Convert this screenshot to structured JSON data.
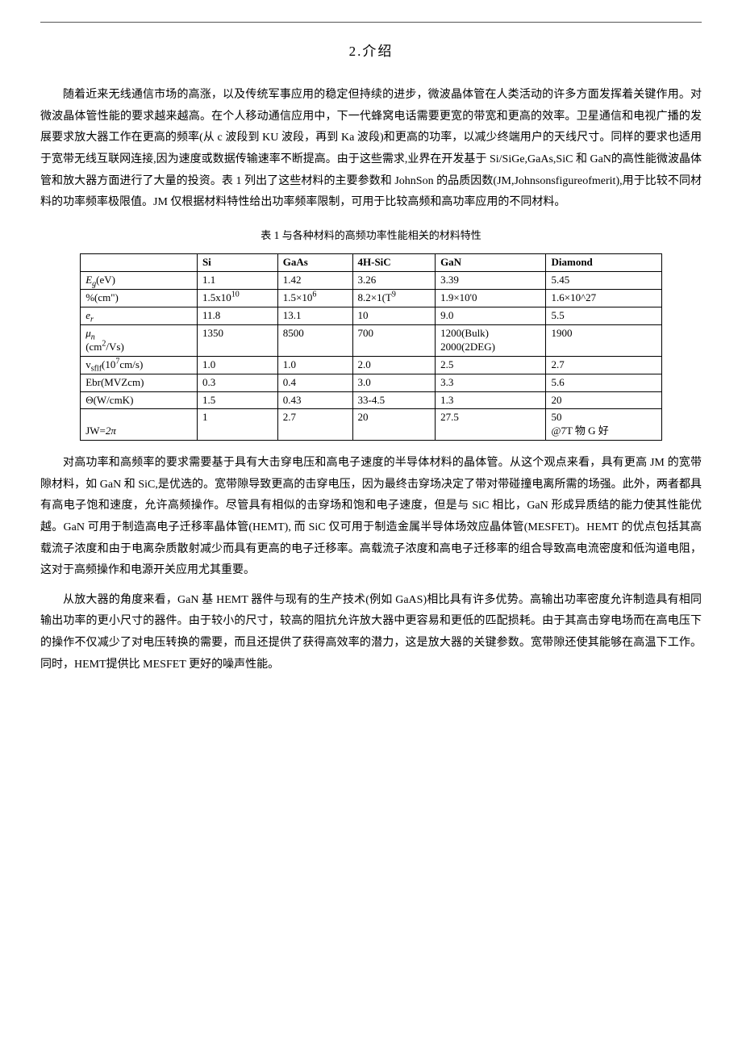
{
  "section_number": "2",
  "section_title": ".介绍",
  "para1": "随着近来无线通信市场的高涨，以及传统军事应用的稳定但持续的进步，微波晶体管在人类活动的许多方面发挥着关键作用。对微波晶体管性能的要求越来越高。在个人移动通信应用中，下一代蜂窝电话需要更宽的带宽和更高的效率。卫星通信和电视广播的发展要求放大器工作在更高的频率(从 c 波段到 KU 波段，再到 Ka 波段)和更高的功率，以减少终端用户的天线尺寸。同样的要求也适用于宽带无线互联网连接,因为速度或数据传输速率不断提高。由于这些需求,业界在开发基于 Si/SiGe,GaAs,SiC 和 GaN的高性能微波晶体管和放大器方面进行了大量的投资。表 1 列出了这些材料的主要参数和 JohnSon 的品质因数(JM,Johnsonsfigureofmerit),用于比较不同材料的功率频率极限值。JM 仅根据材料特性给出功率频率限制，可用于比较高频和高功率应用的不同材料。",
  "table_caption_prefix": "表",
  "table_caption_num": "1",
  "table_caption_text": " 与各种材料的高频功率性能相关的材料特性",
  "table": {
    "columns": [
      "",
      "Si",
      "GaAs",
      "4H-SiC",
      "GaN",
      "Diamond"
    ],
    "rows": [
      {
        "header_html": "<span class='italic'>E<sub>g</sub></span>(eV)",
        "cells": [
          "1.1",
          "1.42",
          "3.26",
          "3.39",
          "5.45"
        ]
      },
      {
        "header_html": "%(cm\")",
        "cells": [
          "1.5x10<sup>10</sup>",
          "1.5×10<sup>6</sup>",
          "8.2×1(T<sup>9</sup>",
          "1.9×10'0",
          "1.6×10^27"
        ]
      },
      {
        "header_html": "<span class='italic'>e<sub>r</sub></span>",
        "cells": [
          "11.8",
          "13.1",
          "10",
          "9.0",
          "5.5"
        ]
      },
      {
        "header_html": "<span class='italic'>μ<sub>n</sub></span><br>(cm<sup>2</sup>/Vs)",
        "cells": [
          "1350",
          "8500",
          "700",
          "1200(Bulk)<br>2000(2DEG)",
          "1900"
        ]
      },
      {
        "header_html": "v<sub>sflf</sub>(10<sup>7</sup>cm/s)",
        "cells": [
          "1.0",
          "1.0",
          "2.0",
          "2.5",
          "2.7"
        ]
      },
      {
        "header_html": "Ebr(MVZcm)",
        "cells": [
          "0.3",
          "0.4",
          "3.0",
          "3.3",
          "5.6"
        ]
      },
      {
        "header_html": "Θ(W/cmK)",
        "cells": [
          "1.5",
          "0.43",
          "33-4.5",
          "1.3",
          "20"
        ]
      },
      {
        "header_html": "<br>JW=<span class='italic'>2π</span>",
        "cells": [
          "1",
          "2.7",
          "20",
          "27.5",
          "50<br>@7T 物 G 好"
        ]
      }
    ]
  },
  "para2": "对高功率和高频率的要求需要基于具有大击穿电压和高电子速度的半导体材料的晶体管。从这个观点来看，具有更高 JM 的宽带隙材料，如 GaN 和 SiC,是优选的。宽带隙导致更高的击穿电压，因为最终击穿场决定了带对带碰撞电离所需的场强。此外，两者都具有高电子饱和速度，允许高频操作。尽管具有相似的击穿场和饱和电子速度，但是与 SiC 相比，GaN 形成异质结的能力使其性能优越。GaN 可用于制造高电子迁移率晶体管(HEMT), 而 SiC 仅可用于制造金属半导体场效应晶体管(MESFET)。HEMT 的优点包括其高载流子浓度和由于电离杂质散射减少而具有更高的电子迁移率。高载流子浓度和高电子迁移率的组合导致高电流密度和低沟道电阻，这对于高频操作和电源开关应用尤其重要。",
  "para3": "从放大器的角度来看，GaN 基 HEMT 器件与现有的生产技术(例如 GaAS)相比具有许多优势。高输出功率密度允许制造具有相同输出功率的更小尺寸的器件。由于较小的尺寸，较高的阻抗允许放大器中更容易和更低的匹配损耗。由于其高击穿电场而在高电压下的操作不仅减少了对电压转换的需要，而且还提供了获得高效率的潜力，这是放大器的关键参数。宽带隙还使其能够在高温下工作。同时，HEMT提供比 MESFET 更好的噪声性能。"
}
